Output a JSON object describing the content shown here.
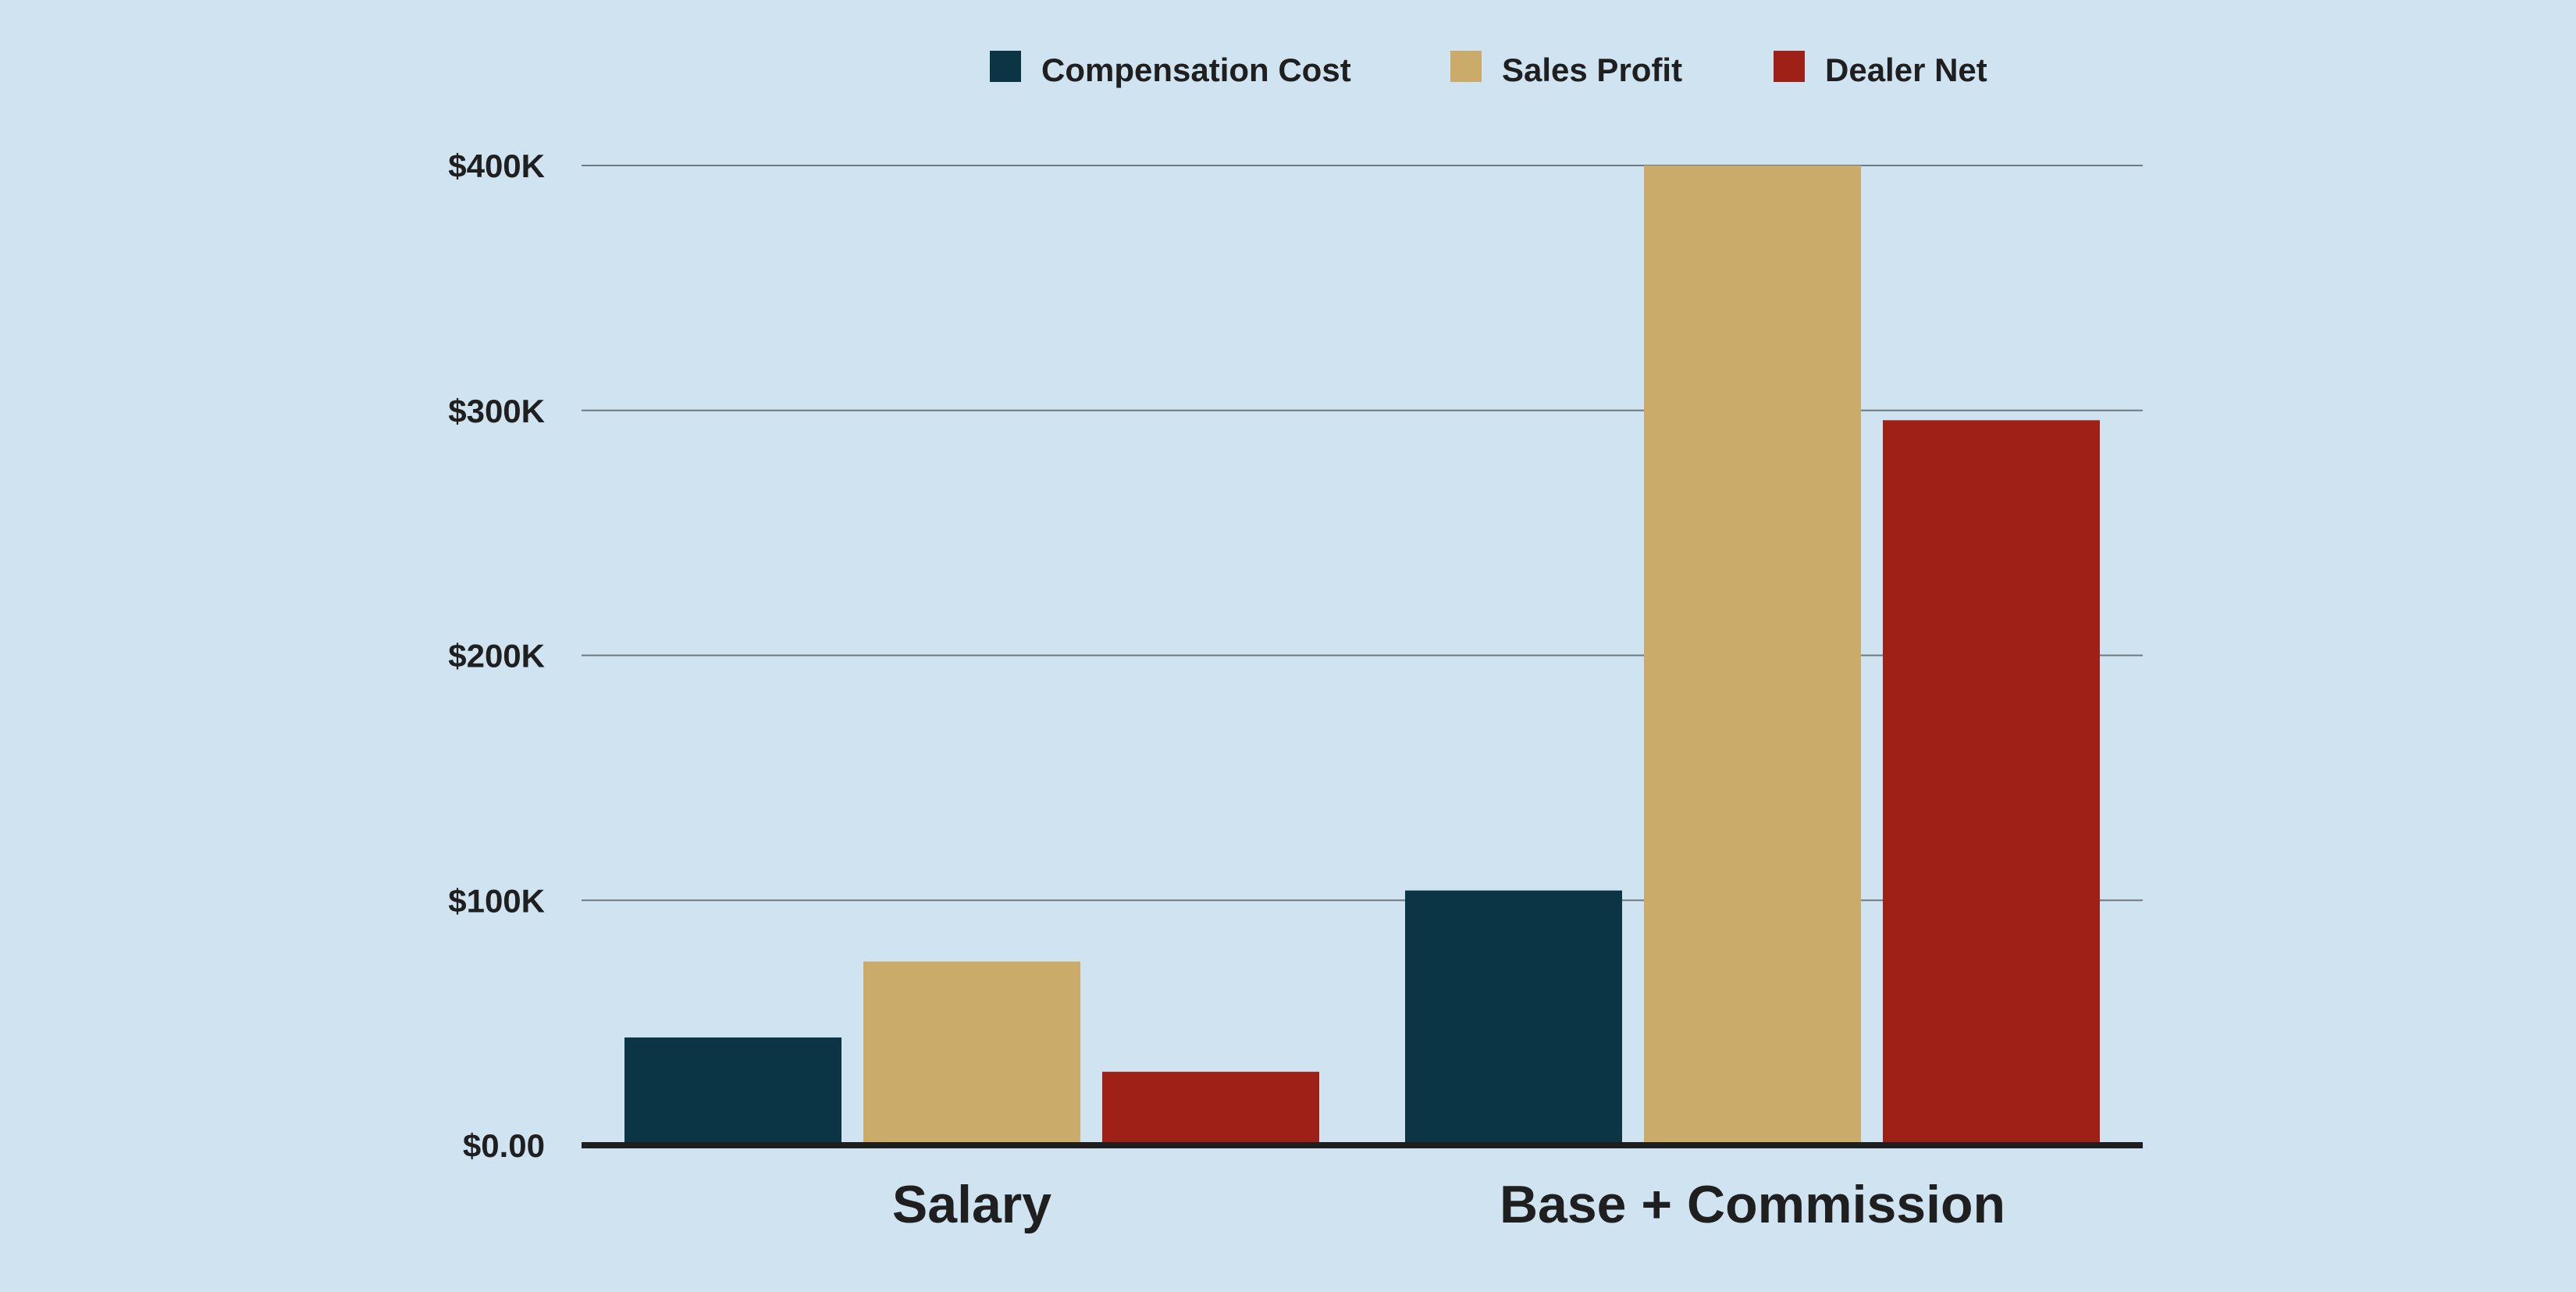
{
  "chart_data": {
    "type": "bar",
    "title": "",
    "xlabel": "",
    "ylabel": "",
    "categories": [
      "Salary",
      "Base + Commission"
    ],
    "series": [
      {
        "name": "Compensation Cost",
        "color": "#0b3444",
        "values": [
          44000,
          104000
        ]
      },
      {
        "name": "Sales Profit",
        "color": "#cbab6a",
        "values": [
          75000,
          400000
        ]
      },
      {
        "name": "Dealer Net",
        "color": "#9e2016",
        "values": [
          30000,
          296000
        ]
      }
    ],
    "ylim": [
      0,
      400000
    ],
    "yticks": [
      0,
      100000,
      200000,
      300000,
      400000
    ],
    "ytick_labels": [
      "$0.00",
      "$100K",
      "$200K",
      "$300K",
      "$400K"
    ],
    "grid": true,
    "legend_position": "top-center",
    "background_color": "#cfe3f0"
  }
}
